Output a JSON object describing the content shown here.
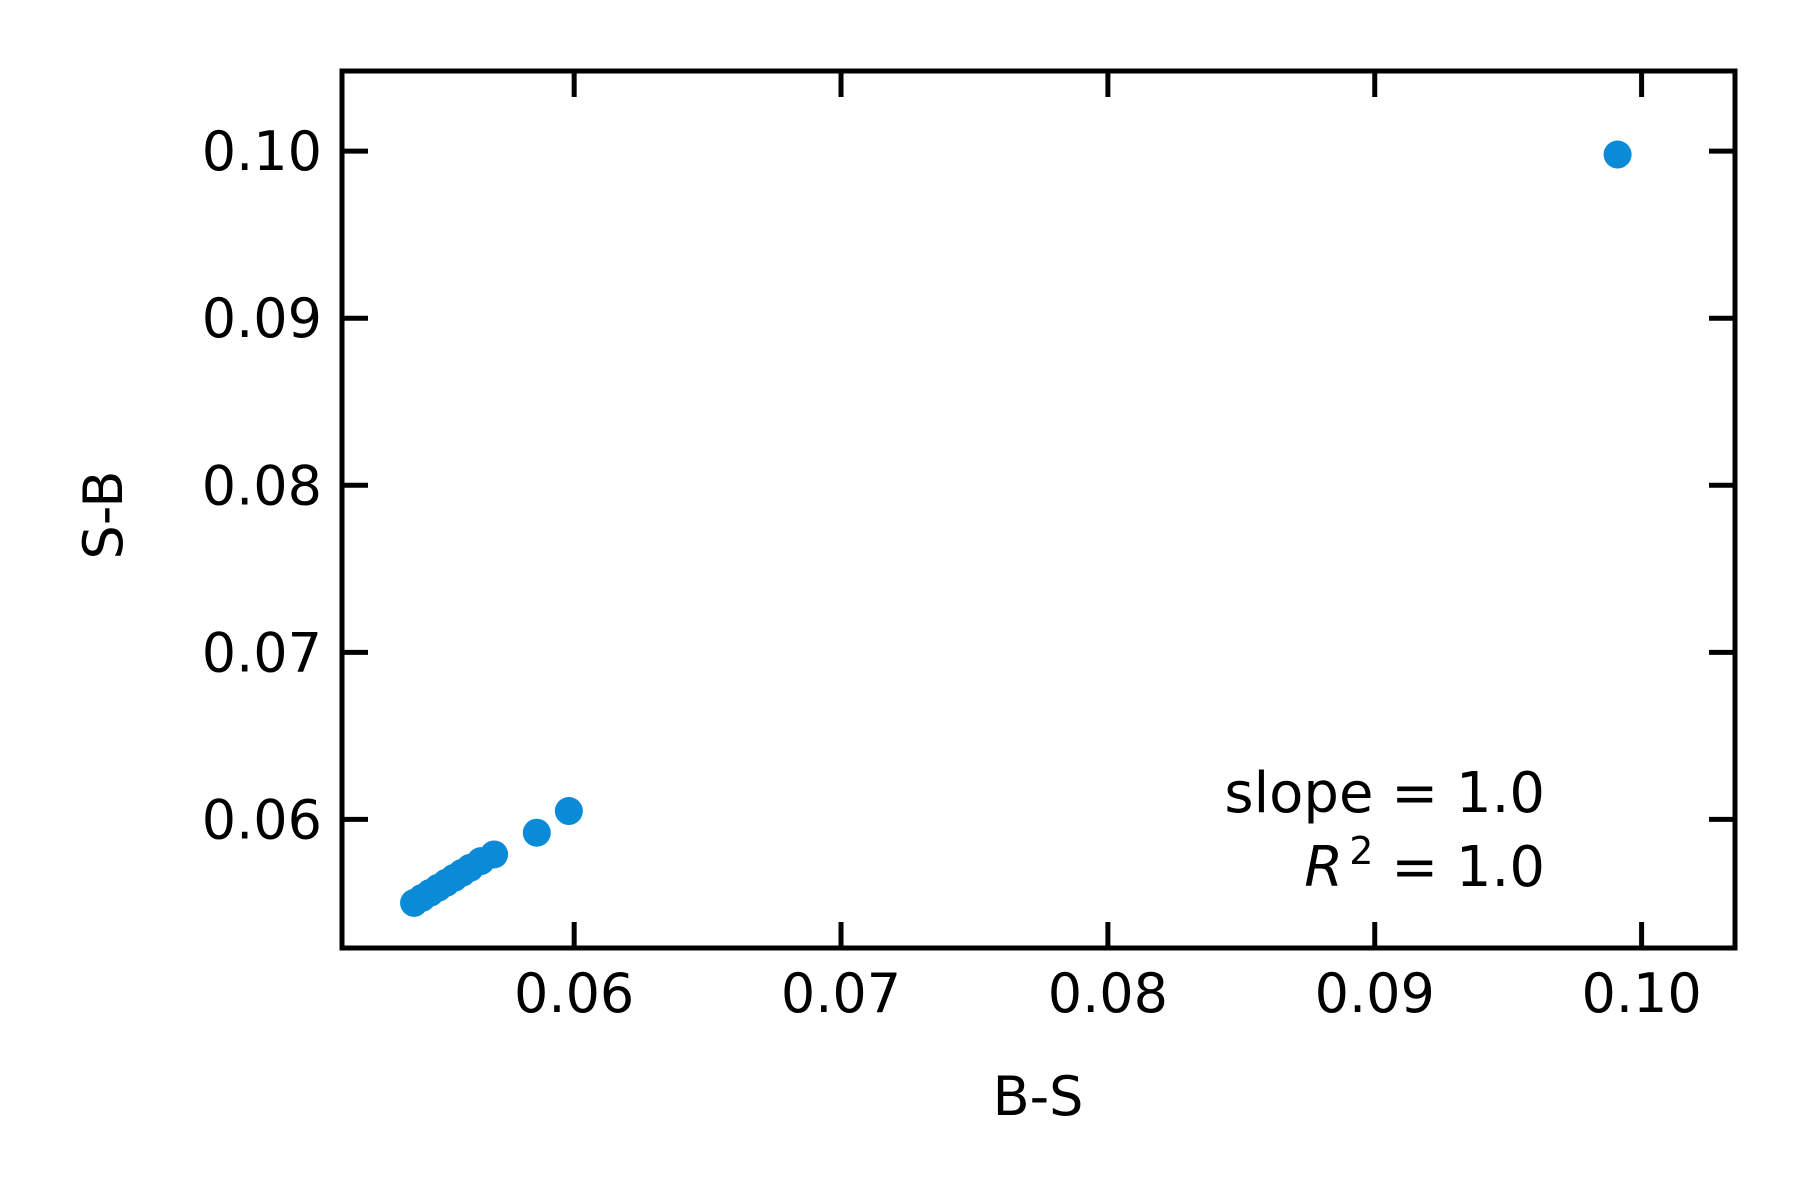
{
  "chart_data": {
    "type": "scatter",
    "title": "",
    "xlabel": "B-S",
    "ylabel": "S-B",
    "xlim": [
      0.0513,
      0.1035
    ],
    "ylim": [
      0.0523,
      0.1048
    ],
    "x_ticks": [
      0.06,
      0.07,
      0.08,
      0.09,
      0.1
    ],
    "y_ticks": [
      0.06,
      0.07,
      0.08,
      0.09,
      0.1
    ],
    "x_tick_labels": [
      "0.06",
      "0.07",
      "0.08",
      "0.09",
      "0.10"
    ],
    "y_tick_labels": [
      "0.06",
      "0.07",
      "0.08",
      "0.09",
      "0.10"
    ],
    "grid": false,
    "marker_color": "#0a8bd8",
    "series": [
      {
        "x": [
          0.054,
          0.0543,
          0.0546,
          0.0549,
          0.0552,
          0.0555,
          0.0558,
          0.0561,
          0.0565,
          0.057,
          0.0586,
          0.0598,
          0.0991
        ],
        "y": [
          0.055,
          0.0553,
          0.0556,
          0.0559,
          0.0562,
          0.0565,
          0.0568,
          0.0571,
          0.0575,
          0.0579,
          0.0592,
          0.0605,
          0.0998
        ]
      }
    ],
    "annotation": {
      "slope_text": "slope = 1.0",
      "r2_letter": "R",
      "r2_exponent": "2",
      "r2_value_text": " = 1.0"
    }
  }
}
